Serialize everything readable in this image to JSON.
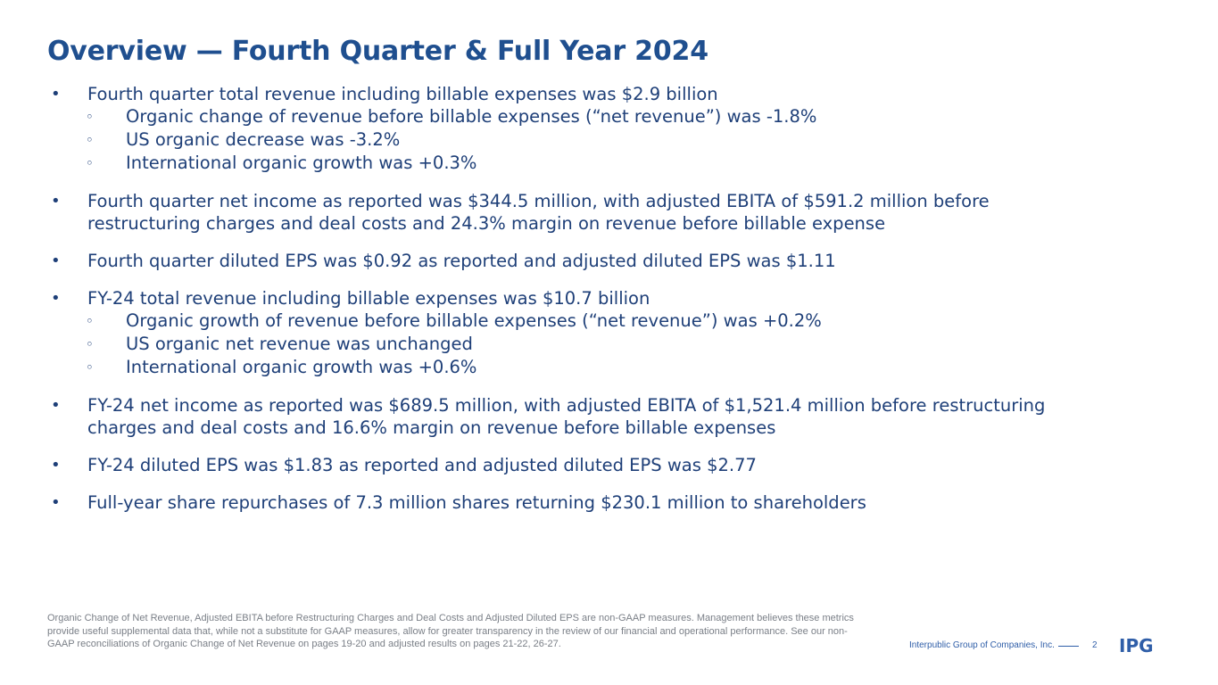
{
  "title": "Overview — Fourth Quarter & Full Year 2024",
  "bullets": [
    {
      "text": "Fourth quarter total revenue including billable expenses was $2.9 billion",
      "sub": [
        "Organic change of revenue before billable expenses (“net revenue”) was -1.8%",
        "US organic decrease was -3.2%",
        "International organic growth was +0.3%"
      ]
    },
    {
      "text": "Fourth quarter net income as reported was $344.5 million, with adjusted EBITA of $591.2 million before restructuring charges and deal costs and 24.3% margin on revenue before billable expense"
    },
    {
      "text": "Fourth quarter diluted EPS was $0.92 as reported and adjusted diluted EPS was $1.11"
    },
    {
      "text": "FY-24 total revenue including billable expenses was $10.7 billion",
      "sub": [
        "Organic growth of revenue before billable expenses (“net revenue”) was +0.2%",
        "US organic net revenue was unchanged",
        "International organic growth was +0.6%"
      ]
    },
    {
      "text": "FY-24 net income as reported was $689.5 million, with adjusted EBITA of $1,521.4 million before restructuring charges and deal costs and 16.6% margin on revenue before billable expenses"
    },
    {
      "text": "FY-24 diluted EPS was $1.83 as reported and adjusted diluted EPS was $2.77"
    },
    {
      "text": "Full-year share repurchases of 7.3 million shares returning $230.1 million to shareholders"
    }
  ],
  "bullet_glyph": "•",
  "sub_glyph": "◦",
  "footnote": "Organic Change of Net Revenue, Adjusted EBITA before Restructuring Charges and Deal Costs and Adjusted Diluted EPS are non-GAAP measures. Management believes these metrics provide useful supplemental data that, while not a substitute for GAAP measures, allow for greater transparency in the review of our financial and operational performance. See our non-GAAP reconciliations of Organic Change of Net Revenue on pages 19-20 and adjusted results on pages 21-22, 26-27.",
  "footer": {
    "company": "Interpublic Group of Companies, Inc.",
    "page_number": "2",
    "logo_text": "IPG"
  },
  "colors": {
    "title": "#1f4f8f",
    "body": "#1e3f78",
    "footnote": "#7a7f87",
    "accent": "#2f5ea8"
  }
}
